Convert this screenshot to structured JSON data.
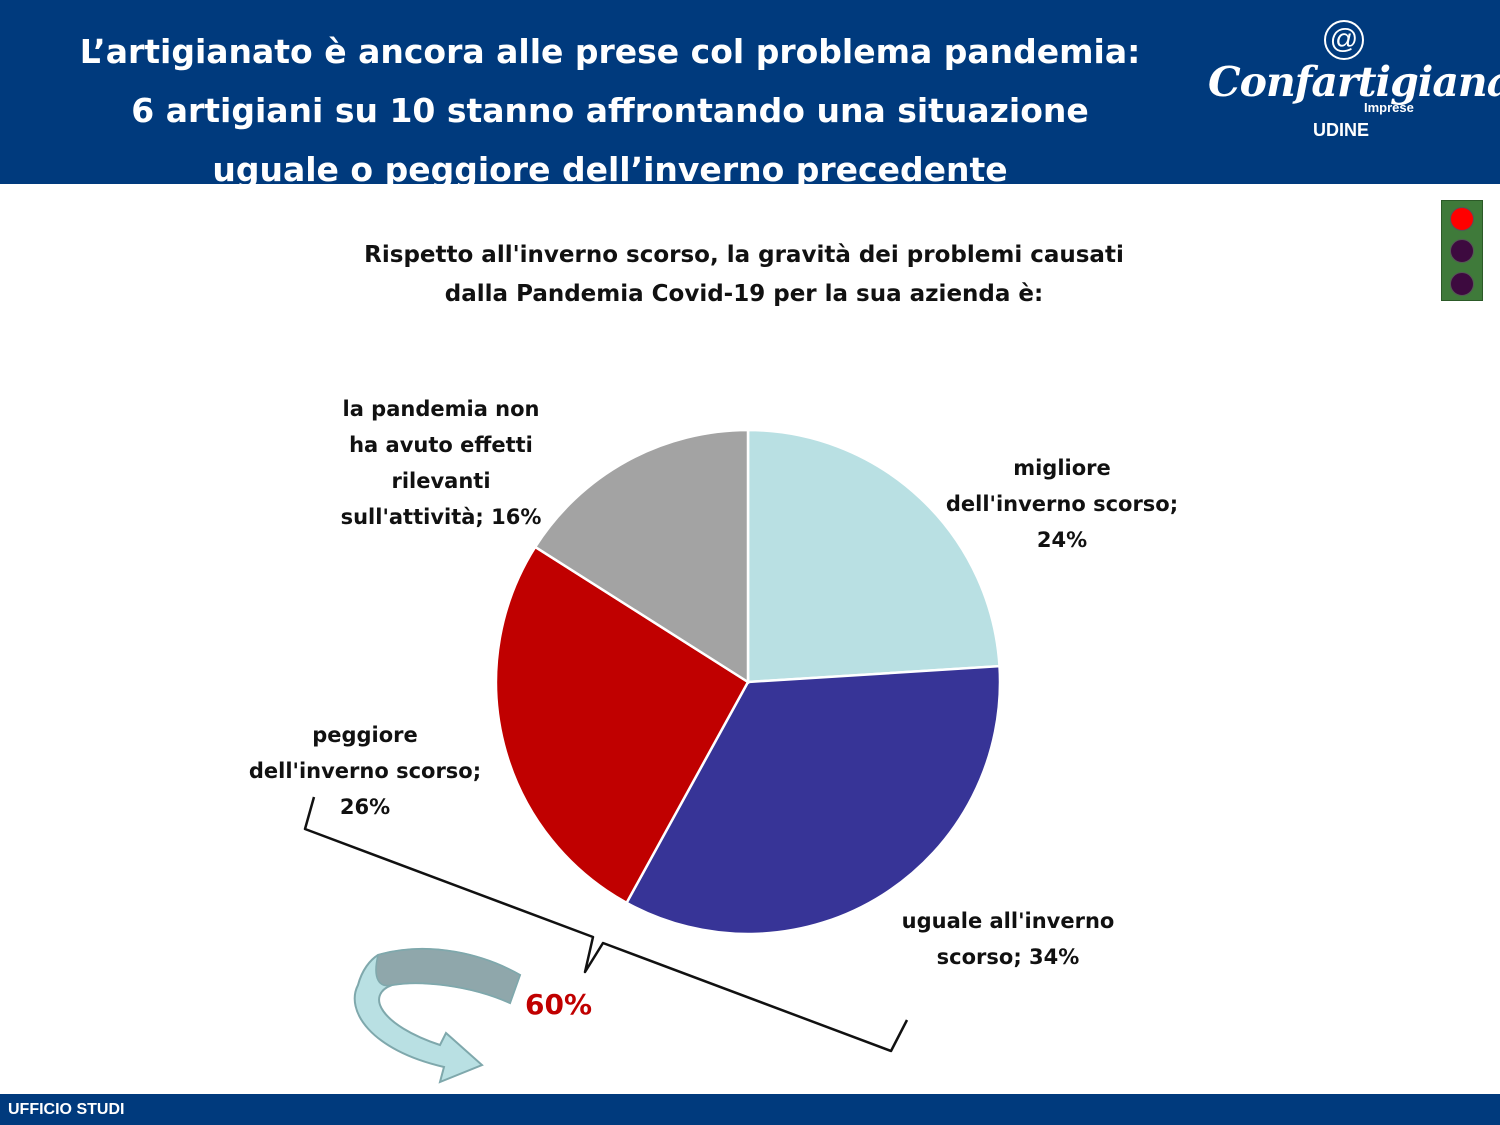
{
  "header": {
    "title_lines": [
      "L’artigianato è ancora alle prese col problema pandemia:",
      "6 artigiani su 10 stanno affrontando una situazione",
      "uguale o peggiore dell’inverno precedente"
    ],
    "logo": {
      "at_symbol": "@",
      "name": "Confartigianato",
      "sub": "Imprese",
      "city": "UDINE"
    }
  },
  "traffic_light": {
    "active": "red",
    "colors": {
      "on": "#ff0000",
      "off": "#3d0a3f"
    }
  },
  "summary": {
    "value": "60%",
    "color": "#c00000",
    "arrow_icon": "curved-arrow-icon"
  },
  "footer": {
    "text": "UFFICIO STUDI"
  },
  "chart_data": {
    "type": "pie",
    "title_lines": [
      "Rispetto all'inverno scorso, la gravità dei problemi causati",
      "dalla Pandemia Covid-19 per la sua azienda è:"
    ],
    "slices": [
      {
        "label_lines": [
          "migliore",
          "dell'inverno scorso;",
          "24%"
        ],
        "category": "migliore dell'inverno scorso",
        "value": 24,
        "color": "#b9e0e3"
      },
      {
        "label_lines": [
          "uguale all'inverno",
          "scorso; 34%"
        ],
        "category": "uguale all'inverno scorso",
        "value": 34,
        "color": "#373497"
      },
      {
        "label_lines": [
          "peggiore",
          "dell'inverno scorso;",
          "26%"
        ],
        "category": "peggiore dell'inverno scorso",
        "value": 26,
        "color": "#c00000"
      },
      {
        "label_lines": [
          "la pandemia non",
          "ha avuto effetti",
          "rilevanti",
          "sull'attività; 16%"
        ],
        "category": "la pandemia non ha avuto effetti rilevanti sull'attività",
        "value": 16,
        "color": "#a3a3a3"
      }
    ],
    "start_angle_deg": 0,
    "direction": "clockwise"
  }
}
